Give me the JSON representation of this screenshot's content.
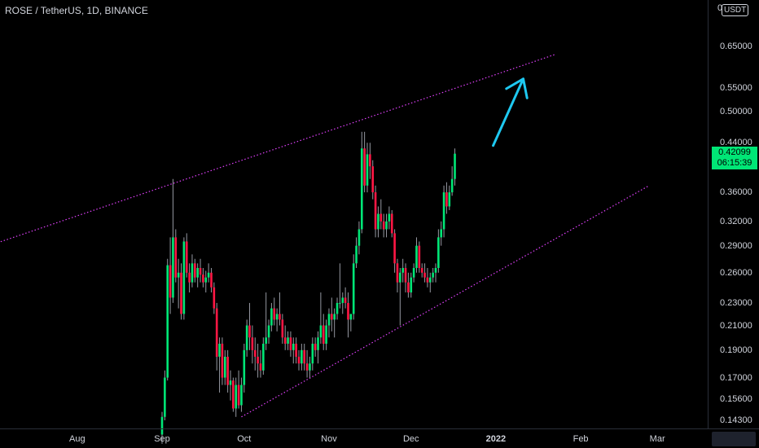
{
  "header": {
    "symbol": "ROSE / TetherUS, 1D, BINANCE"
  },
  "price_axis": {
    "currency": "USDT",
    "currency_prefix": "0",
    "ticks": [
      "0.65000",
      "0.55000",
      "0.50000",
      "0.44000",
      "0.36000",
      "0.32000",
      "0.29000",
      "0.26000",
      "0.23000",
      "0.21000",
      "0.19000",
      "0.17000",
      "0.15600",
      "0.14300"
    ]
  },
  "time_axis": {
    "ticks": [
      "Aug",
      "Sep",
      "Oct",
      "Nov",
      "Dec",
      "2022",
      "Feb",
      "Mar"
    ],
    "bold": [
      "2022"
    ]
  },
  "last_price": {
    "price": "0.42099",
    "countdown": "06:15:39",
    "color": "#00e676"
  },
  "colors": {
    "up": "#00e676",
    "down": "#ff1744",
    "wick": "#9598a1",
    "trendline": "#e040fb",
    "arrow": "#1ec8f0",
    "background": "#000000"
  },
  "chart_data": {
    "type": "candlestick",
    "symbol": "ROSE / TetherUS",
    "interval": "1D",
    "exchange": "BINANCE",
    "y_scale": "log",
    "ylim": [
      0.139,
      0.74
    ],
    "x_start": "2021-09-01",
    "candles_ohlc": [
      [
        0.135,
        0.148,
        0.13,
        0.145
      ],
      [
        0.145,
        0.175,
        0.143,
        0.17
      ],
      [
        0.17,
        0.275,
        0.168,
        0.268
      ],
      [
        0.268,
        0.3,
        0.22,
        0.235
      ],
      [
        0.235,
        0.38,
        0.23,
        0.3
      ],
      [
        0.3,
        0.31,
        0.25,
        0.255
      ],
      [
        0.255,
        0.275,
        0.225,
        0.26
      ],
      [
        0.26,
        0.27,
        0.215,
        0.22
      ],
      [
        0.22,
        0.3,
        0.215,
        0.295
      ],
      [
        0.295,
        0.305,
        0.255,
        0.26
      ],
      [
        0.26,
        0.27,
        0.24,
        0.25
      ],
      [
        0.25,
        0.28,
        0.245,
        0.27
      ],
      [
        0.27,
        0.275,
        0.25,
        0.255
      ],
      [
        0.255,
        0.27,
        0.245,
        0.265
      ],
      [
        0.265,
        0.275,
        0.25,
        0.258
      ],
      [
        0.258,
        0.265,
        0.245,
        0.25
      ],
      [
        0.25,
        0.262,
        0.24,
        0.255
      ],
      [
        0.255,
        0.27,
        0.25,
        0.26
      ],
      [
        0.26,
        0.265,
        0.24,
        0.245
      ],
      [
        0.245,
        0.25,
        0.22,
        0.225
      ],
      [
        0.225,
        0.23,
        0.175,
        0.185
      ],
      [
        0.185,
        0.2,
        0.16,
        0.195
      ],
      [
        0.195,
        0.2,
        0.165,
        0.17
      ],
      [
        0.17,
        0.19,
        0.165,
        0.185
      ],
      [
        0.185,
        0.19,
        0.16,
        0.165
      ],
      [
        0.165,
        0.175,
        0.155,
        0.168
      ],
      [
        0.168,
        0.17,
        0.148,
        0.15
      ],
      [
        0.15,
        0.17,
        0.145,
        0.165
      ],
      [
        0.165,
        0.175,
        0.15,
        0.152
      ],
      [
        0.152,
        0.17,
        0.148,
        0.165
      ],
      [
        0.165,
        0.195,
        0.16,
        0.19
      ],
      [
        0.19,
        0.215,
        0.185,
        0.21
      ],
      [
        0.21,
        0.23,
        0.19,
        0.2
      ],
      [
        0.2,
        0.21,
        0.18,
        0.19
      ],
      [
        0.19,
        0.2,
        0.175,
        0.185
      ],
      [
        0.185,
        0.195,
        0.17,
        0.18
      ],
      [
        0.18,
        0.19,
        0.17,
        0.175
      ],
      [
        0.175,
        0.2,
        0.172,
        0.195
      ],
      [
        0.195,
        0.24,
        0.19,
        0.2
      ],
      [
        0.2,
        0.215,
        0.195,
        0.21
      ],
      [
        0.21,
        0.23,
        0.205,
        0.225
      ],
      [
        0.225,
        0.235,
        0.21,
        0.215
      ],
      [
        0.215,
        0.225,
        0.205,
        0.22
      ],
      [
        0.22,
        0.24,
        0.21,
        0.215
      ],
      [
        0.215,
        0.22,
        0.195,
        0.2
      ],
      [
        0.2,
        0.21,
        0.19,
        0.195
      ],
      [
        0.195,
        0.205,
        0.19,
        0.2
      ],
      [
        0.2,
        0.205,
        0.185,
        0.19
      ],
      [
        0.19,
        0.2,
        0.18,
        0.195
      ],
      [
        0.195,
        0.2,
        0.18,
        0.185
      ],
      [
        0.185,
        0.19,
        0.175,
        0.18
      ],
      [
        0.18,
        0.195,
        0.175,
        0.19
      ],
      [
        0.19,
        0.195,
        0.175,
        0.18
      ],
      [
        0.18,
        0.19,
        0.17,
        0.175
      ],
      [
        0.175,
        0.185,
        0.17,
        0.18
      ],
      [
        0.18,
        0.2,
        0.175,
        0.195
      ],
      [
        0.195,
        0.2,
        0.185,
        0.19
      ],
      [
        0.19,
        0.205,
        0.18,
        0.2
      ],
      [
        0.2,
        0.24,
        0.195,
        0.21
      ],
      [
        0.21,
        0.22,
        0.19,
        0.195
      ],
      [
        0.195,
        0.215,
        0.19,
        0.21
      ],
      [
        0.21,
        0.225,
        0.2,
        0.22
      ],
      [
        0.22,
        0.235,
        0.205,
        0.215
      ],
      [
        0.215,
        0.225,
        0.2,
        0.22
      ],
      [
        0.22,
        0.235,
        0.215,
        0.23
      ],
      [
        0.23,
        0.27,
        0.225,
        0.23
      ],
      [
        0.23,
        0.24,
        0.22,
        0.235
      ],
      [
        0.235,
        0.245,
        0.225,
        0.23
      ],
      [
        0.23,
        0.24,
        0.2,
        0.215
      ],
      [
        0.215,
        0.22,
        0.205,
        0.22
      ],
      [
        0.22,
        0.28,
        0.215,
        0.27
      ],
      [
        0.27,
        0.3,
        0.265,
        0.29
      ],
      [
        0.29,
        0.32,
        0.28,
        0.31
      ],
      [
        0.31,
        0.46,
        0.305,
        0.43
      ],
      [
        0.43,
        0.46,
        0.36,
        0.37
      ],
      [
        0.37,
        0.44,
        0.36,
        0.42
      ],
      [
        0.42,
        0.44,
        0.38,
        0.4
      ],
      [
        0.4,
        0.41,
        0.35,
        0.36
      ],
      [
        0.36,
        0.37,
        0.3,
        0.31
      ],
      [
        0.31,
        0.34,
        0.3,
        0.33
      ],
      [
        0.33,
        0.35,
        0.31,
        0.32
      ],
      [
        0.32,
        0.33,
        0.3,
        0.31
      ],
      [
        0.31,
        0.33,
        0.3,
        0.32
      ],
      [
        0.32,
        0.34,
        0.31,
        0.33
      ],
      [
        0.33,
        0.335,
        0.3,
        0.305
      ],
      [
        0.305,
        0.31,
        0.26,
        0.27
      ],
      [
        0.27,
        0.275,
        0.24,
        0.25
      ],
      [
        0.25,
        0.265,
        0.21,
        0.26
      ],
      [
        0.26,
        0.275,
        0.25,
        0.265
      ],
      [
        0.265,
        0.27,
        0.24,
        0.25
      ],
      [
        0.25,
        0.26,
        0.235,
        0.24
      ],
      [
        0.24,
        0.26,
        0.235,
        0.255
      ],
      [
        0.255,
        0.27,
        0.25,
        0.265
      ],
      [
        0.265,
        0.3,
        0.26,
        0.29
      ],
      [
        0.29,
        0.295,
        0.26,
        0.265
      ],
      [
        0.265,
        0.27,
        0.255,
        0.26
      ],
      [
        0.26,
        0.27,
        0.25,
        0.255
      ],
      [
        0.255,
        0.265,
        0.245,
        0.25
      ],
      [
        0.25,
        0.26,
        0.24,
        0.255
      ],
      [
        0.255,
        0.265,
        0.25,
        0.26
      ],
      [
        0.26,
        0.27,
        0.25,
        0.265
      ],
      [
        0.265,
        0.31,
        0.26,
        0.3
      ],
      [
        0.3,
        0.32,
        0.29,
        0.31
      ],
      [
        0.31,
        0.37,
        0.3,
        0.36
      ],
      [
        0.36,
        0.375,
        0.33,
        0.34
      ],
      [
        0.34,
        0.37,
        0.335,
        0.36
      ],
      [
        0.36,
        0.4,
        0.355,
        0.38
      ],
      [
        0.38,
        0.43,
        0.37,
        0.421
      ]
    ],
    "trendlines": [
      {
        "name": "upper",
        "style": "dotted",
        "points": [
          [
            "2021-06-25",
            0.285
          ],
          [
            "2022-01-23",
            0.63
          ]
        ]
      },
      {
        "name": "lower",
        "style": "dotted",
        "points": [
          [
            "2021-09-30",
            0.145
          ],
          [
            "2022-02-26",
            0.37
          ]
        ]
      }
    ],
    "arrow": {
      "from": [
        "2021-12-31",
        0.435
      ],
      "to": [
        "2022-01-11",
        0.57
      ]
    },
    "grid": false
  }
}
